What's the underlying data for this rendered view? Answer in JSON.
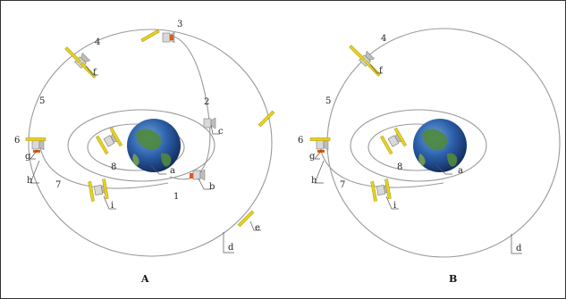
{
  "panel_a": {
    "title": "A",
    "labels": {
      "n1": "1",
      "n2": "2",
      "n3": "3",
      "n4": "4",
      "n5": "5",
      "n6": "6",
      "n7": "7",
      "n8": "8",
      "a": "a",
      "b": "b",
      "c": "c",
      "d": "d",
      "e": "e",
      "f": "f",
      "g": "g",
      "h": "h",
      "i": "i"
    }
  },
  "panel_b": {
    "title": "B",
    "labels": {
      "n4": "4",
      "n5": "5",
      "n6": "6",
      "n7": "7",
      "n8": "8",
      "a": "a",
      "d": "d",
      "f": "f",
      "g": "g",
      "h": "h",
      "i": "i"
    }
  },
  "colors": {
    "orbit": "#9a9a9a",
    "panel_yellow": "#e8d21a",
    "thruster_orange": "#e05a10",
    "ocean": "#2b5fa8",
    "land": "#4f8a3c"
  }
}
